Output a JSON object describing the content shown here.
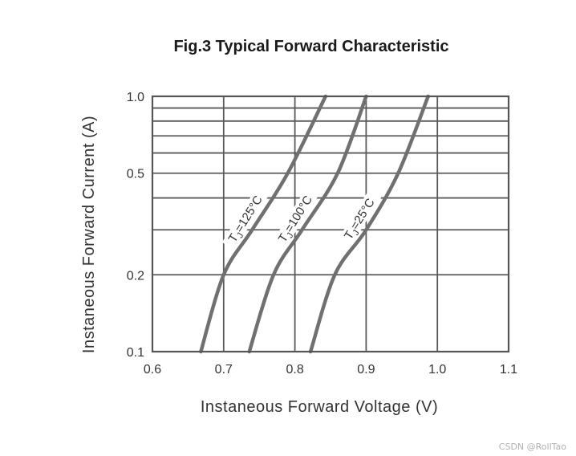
{
  "chart_data": {
    "type": "line",
    "title": "Fig.3  Typical Forward Characteristic",
    "xlabel": "Instaneous Forward Voltage (V)",
    "ylabel": "Instaneous Forward Current  (A)",
    "xlim": [
      0.6,
      1.1
    ],
    "ylim": [
      0.1,
      1.0
    ],
    "yscale": "log",
    "x_ticks": [
      "0.6",
      "0.7",
      "0.8",
      "0.9",
      "1.0",
      "1.1"
    ],
    "x_tick_values": [
      0.6,
      0.7,
      0.8,
      0.9,
      1.0,
      1.1
    ],
    "y_ticks": [
      "0.1",
      "0.2",
      "0.5",
      "1.0"
    ],
    "y_tick_values": [
      0.1,
      0.2,
      0.5,
      1.0
    ],
    "y_minor_grid": [
      0.3,
      0.4,
      0.6,
      0.7,
      0.8,
      0.9
    ],
    "grid": true,
    "series": [
      {
        "name": "T_J=125°C",
        "label_main": "T",
        "label_sub": "J",
        "label_rest": "=125°C",
        "points": [
          [
            0.668,
            0.1
          ],
          [
            0.7,
            0.2
          ],
          [
            0.74,
            0.3
          ],
          [
            0.79,
            0.5
          ],
          [
            0.843,
            1.0
          ]
        ]
      },
      {
        "name": "T_J=100°C",
        "label_main": "T",
        "label_sub": "J",
        "label_rest": "=100°C",
        "points": [
          [
            0.736,
            0.1
          ],
          [
            0.77,
            0.2
          ],
          [
            0.81,
            0.3
          ],
          [
            0.86,
            0.5
          ],
          [
            0.9,
            1.0
          ]
        ]
      },
      {
        "name": "T_J=25°C",
        "label_main": "T",
        "label_sub": "J",
        "label_rest": "=25°C",
        "points": [
          [
            0.822,
            0.1
          ],
          [
            0.856,
            0.2
          ],
          [
            0.9,
            0.3
          ],
          [
            0.945,
            0.5
          ],
          [
            0.987,
            1.0
          ]
        ]
      }
    ]
  },
  "watermark": "CSDN @RollTao"
}
